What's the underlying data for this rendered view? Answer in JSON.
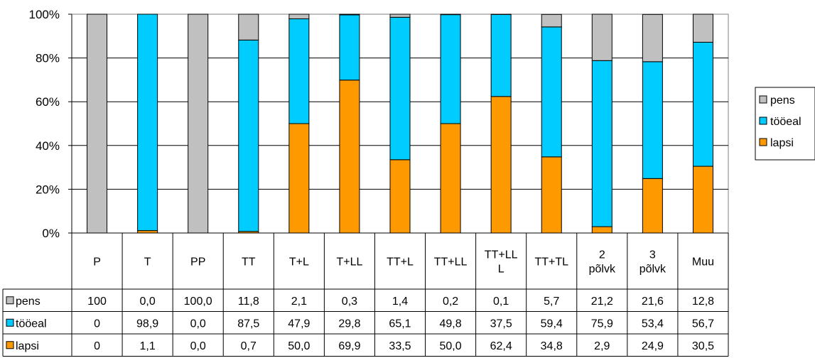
{
  "chart_data": {
    "type": "bar",
    "stacked": true,
    "percent_stacked": true,
    "categories": [
      [
        "P"
      ],
      [
        "T"
      ],
      [
        "PP"
      ],
      [
        "TT"
      ],
      [
        "T+L"
      ],
      [
        "T+LL"
      ],
      [
        "TT+L"
      ],
      [
        "TT+LL"
      ],
      [
        "TT+LL",
        "L"
      ],
      [
        "TT+TL"
      ],
      [
        "2",
        "põlvk"
      ],
      [
        "3",
        "põlvk"
      ],
      [
        "Muu"
      ]
    ],
    "series": [
      {
        "name": "pens",
        "color": "#C0C0C0",
        "values": [
          100,
          0.0,
          100.0,
          11.8,
          2.1,
          0.3,
          1.4,
          0.2,
          0.1,
          5.7,
          21.2,
          21.6,
          12.8
        ],
        "labels": [
          "100",
          "0,0",
          "100,0",
          "11,8",
          "2,1",
          "0,3",
          "1,4",
          "0,2",
          "0,1",
          "5,7",
          "21,2",
          "21,6",
          "12,8"
        ]
      },
      {
        "name": "tööeal",
        "color": "#00CCFF",
        "values": [
          0,
          98.9,
          0.0,
          87.5,
          47.9,
          29.8,
          65.1,
          49.8,
          37.5,
          59.4,
          75.9,
          53.4,
          56.7
        ],
        "labels": [
          "0",
          "98,9",
          "0,0",
          "87,5",
          "47,9",
          "29,8",
          "65,1",
          "49,8",
          "37,5",
          "59,4",
          "75,9",
          "53,4",
          "56,7"
        ]
      },
      {
        "name": "lapsi",
        "color": "#FF9900",
        "values": [
          0,
          1.1,
          0.0,
          0.7,
          50.0,
          69.9,
          33.5,
          50.0,
          62.4,
          34.8,
          2.9,
          24.9,
          30.5
        ],
        "labels": [
          "0",
          "1,1",
          "0,0",
          "0,7",
          "50,0",
          "69,9",
          "33,5",
          "50,0",
          "62,4",
          "34,8",
          "2,9",
          "24,9",
          "30,5"
        ]
      }
    ],
    "stack_order_bottom_to_top": [
      "lapsi",
      "tööeal",
      "pens"
    ],
    "legend_order": [
      "pens",
      "tööeal",
      "lapsi"
    ],
    "y_ticks": [
      "0%",
      "20%",
      "40%",
      "60%",
      "80%",
      "100%"
    ],
    "ylim": [
      0,
      100
    ],
    "grid": true,
    "legend_position": "right",
    "data_table": true
  }
}
